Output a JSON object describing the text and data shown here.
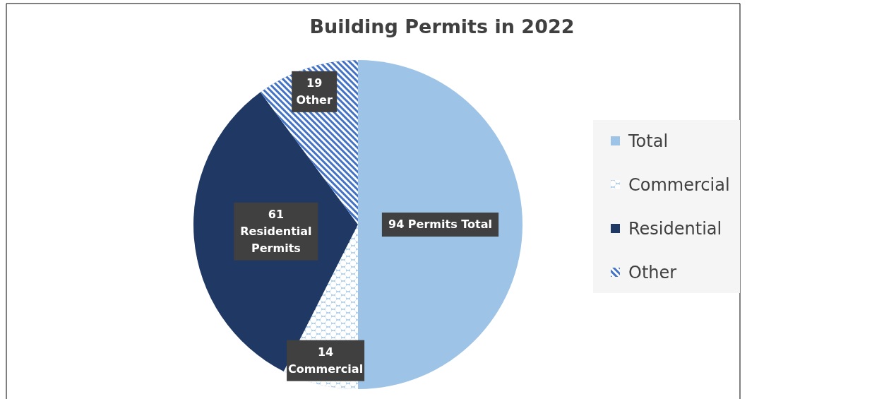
{
  "chart_data": {
    "type": "pie",
    "title": "Building Permits in 2022",
    "categories": [
      "Total",
      "Commercial",
      "Residential",
      "Other"
    ],
    "values": [
      94,
      14,
      61,
      19
    ],
    "colors": [
      "#9dc3e6",
      "#9dc3e6",
      "#1f3864",
      "#4472c4"
    ],
    "value_labels": [
      "94 Permits Total",
      "14\nCommercial",
      "61\nResidential\nPermits",
      "19\nOther"
    ],
    "legend": "right"
  }
}
